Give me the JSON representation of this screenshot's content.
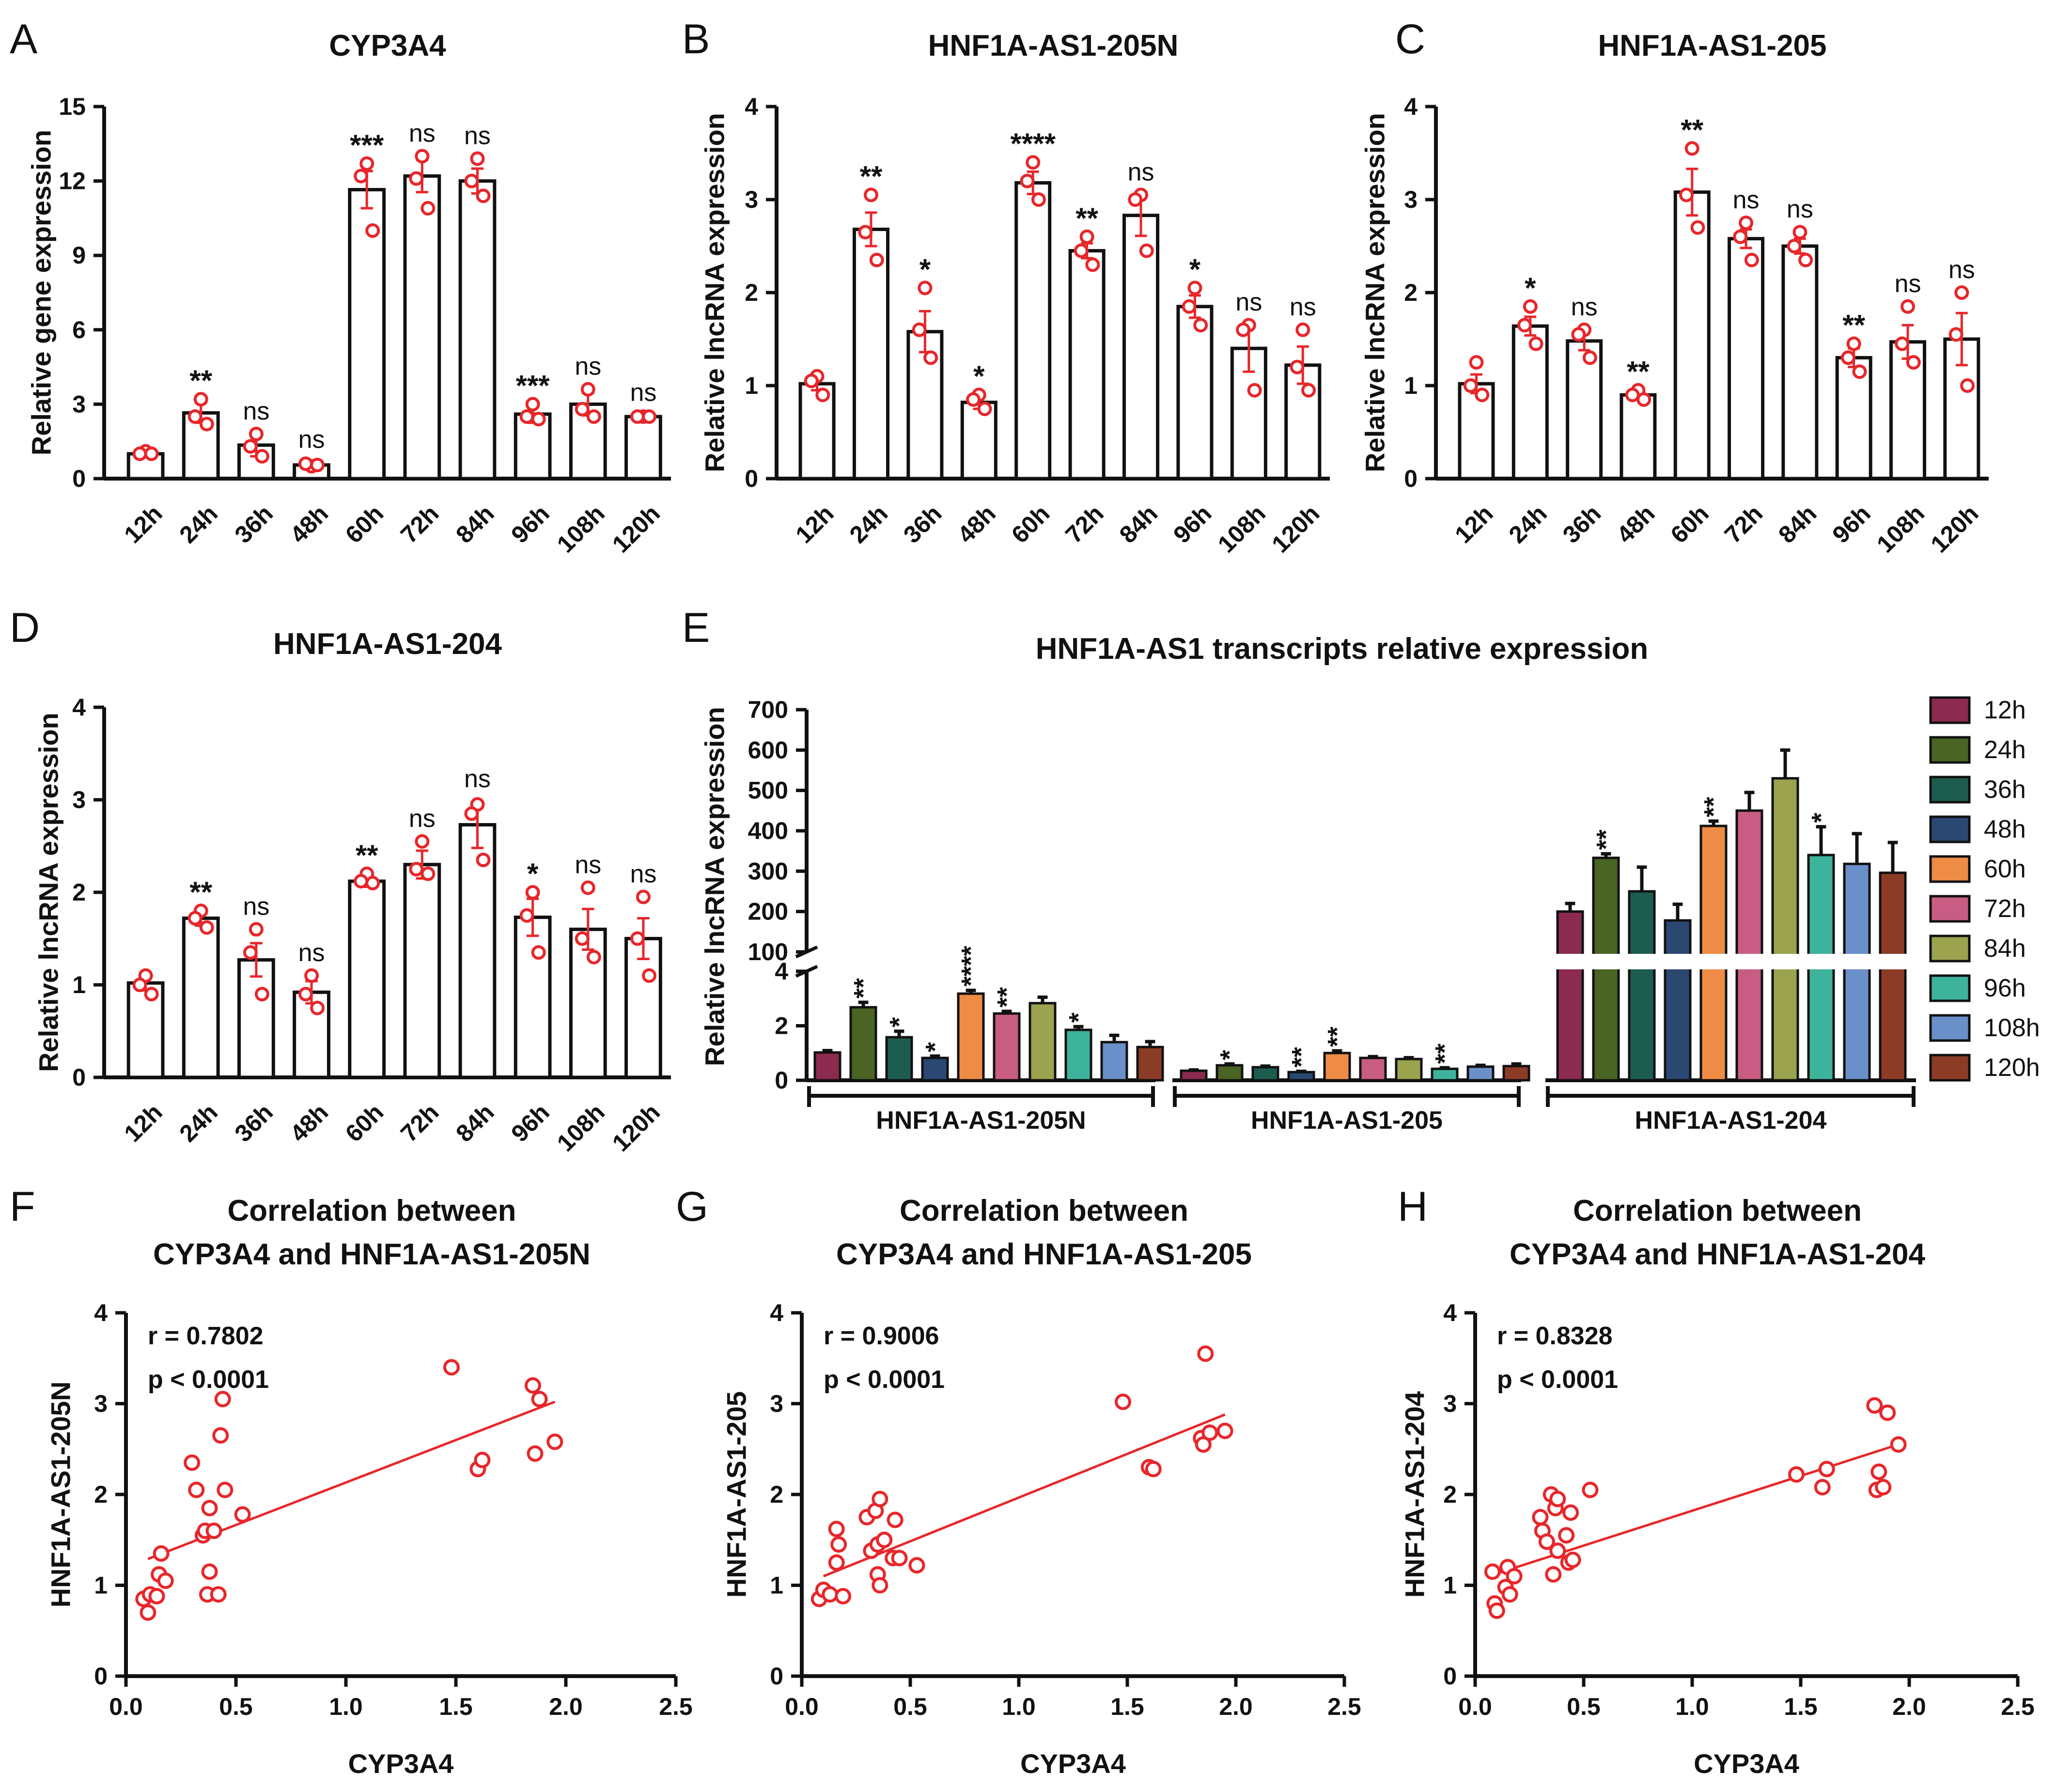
{
  "colors": {
    "accent": "#e8262a",
    "axis": "#111111",
    "series": [
      "#8c2a4f",
      "#4a6424",
      "#1d5d4f",
      "#2a4872",
      "#ee8c45",
      "#c85c82",
      "#9ca34f",
      "#3eb39c",
      "#6a8fc9",
      "#8c3b26"
    ],
    "legend_text": [
      "#8c2a4f",
      "#4a6424",
      "#1d5d4f",
      "#2a4872",
      "#e07a36",
      "#c85c82",
      "#7e8c30",
      "#2d9a84",
      "#4f7ac0",
      "#8c3b26"
    ]
  },
  "chart_data": [
    {
      "panel": "A",
      "type": "bar",
      "title": "CYP3A4",
      "xlabel": "",
      "ylabel": "Relative gene expression",
      "ylim": [
        0,
        15
      ],
      "yticks": [
        "0",
        "3",
        "6",
        "9",
        "12",
        "15"
      ],
      "ytick_values": [
        0,
        3,
        6,
        9,
        12,
        15
      ],
      "categories": [
        "12h",
        "24h",
        "36h",
        "48h",
        "60h",
        "72h",
        "84h",
        "96h",
        "108h",
        "120h"
      ],
      "values": [
        1.0,
        2.65,
        1.35,
        0.55,
        11.65,
        12.2,
        12.0,
        2.6,
        3.0,
        2.5
      ],
      "errors": [
        0.1,
        0.4,
        0.45,
        0.1,
        0.75,
        0.65,
        0.5,
        0.35,
        0.45,
        0.05
      ],
      "points": [
        [
          1.1,
          1.0,
          1.0
        ],
        [
          3.2,
          2.5,
          2.2
        ],
        [
          1.8,
          1.3,
          0.9
        ],
        [
          0.5,
          0.6,
          0.55
        ],
        [
          12.7,
          12.2,
          10.0
        ],
        [
          13.0,
          12.1,
          10.9
        ],
        [
          12.9,
          12.0,
          11.4
        ],
        [
          3.0,
          2.5,
          2.4
        ],
        [
          3.6,
          2.8,
          2.5
        ],
        [
          2.5,
          2.5,
          2.5
        ]
      ],
      "significance": [
        "",
        "**",
        "ns",
        "ns",
        "***",
        "ns",
        "ns",
        "***",
        "ns",
        "ns"
      ]
    },
    {
      "panel": "B",
      "type": "bar",
      "title": "HNF1A-AS1-205N",
      "xlabel": "",
      "ylabel": "Relative lncRNA expression",
      "ylim": [
        0,
        4
      ],
      "yticks": [
        "0",
        "1",
        "2",
        "3",
        "4"
      ],
      "ytick_values": [
        0,
        1,
        2,
        3,
        4
      ],
      "categories": [
        "12h",
        "24h",
        "36h",
        "48h",
        "60h",
        "72h",
        "84h",
        "96h",
        "108h",
        "120h"
      ],
      "values": [
        1.02,
        2.68,
        1.58,
        0.82,
        3.18,
        2.45,
        2.83,
        1.85,
        1.4,
        1.22
      ],
      "errors": [
        0.07,
        0.18,
        0.22,
        0.07,
        0.12,
        0.08,
        0.22,
        0.12,
        0.25,
        0.2
      ],
      "points": [
        [
          1.1,
          1.05,
          0.9
        ],
        [
          3.05,
          2.65,
          2.35
        ],
        [
          2.05,
          1.6,
          1.3
        ],
        [
          0.9,
          0.85,
          0.75
        ],
        [
          3.4,
          3.2,
          3.0
        ],
        [
          2.6,
          2.45,
          2.3
        ],
        [
          3.05,
          3.0,
          2.45
        ],
        [
          2.05,
          1.85,
          1.65
        ],
        [
          1.65,
          1.6,
          0.95
        ],
        [
          1.6,
          1.2,
          0.95
        ]
      ],
      "significance": [
        "",
        "**",
        "*",
        "*",
        "****",
        "**",
        "ns",
        "*",
        "ns",
        "ns"
      ]
    },
    {
      "panel": "C",
      "type": "bar",
      "title": "HNF1A-AS1-205",
      "xlabel": "",
      "ylabel": "Relative lncRNA expression",
      "ylim": [
        0,
        4
      ],
      "yticks": [
        "0",
        "1",
        "2",
        "3",
        "4"
      ],
      "ytick_values": [
        0,
        1,
        2,
        3,
        4
      ],
      "categories": [
        "12h",
        "24h",
        "36h",
        "48h",
        "60h",
        "72h",
        "84h",
        "96h",
        "108h",
        "120h"
      ],
      "values": [
        1.02,
        1.64,
        1.48,
        0.9,
        3.08,
        2.58,
        2.5,
        1.3,
        1.47,
        1.5
      ],
      "errors": [
        0.1,
        0.1,
        0.1,
        0.05,
        0.25,
        0.1,
        0.08,
        0.1,
        0.18,
        0.28
      ],
      "points": [
        [
          1.25,
          1.0,
          0.9
        ],
        [
          1.85,
          1.65,
          1.45
        ],
        [
          1.6,
          1.55,
          1.3
        ],
        [
          0.95,
          0.9,
          0.85
        ],
        [
          3.55,
          3.05,
          2.7
        ],
        [
          2.75,
          2.6,
          2.35
        ],
        [
          2.65,
          2.5,
          2.35
        ],
        [
          1.45,
          1.3,
          1.15
        ],
        [
          1.85,
          1.45,
          1.25
        ],
        [
          2.0,
          1.55,
          1.0
        ]
      ],
      "significance": [
        "",
        "*",
        "ns",
        "**",
        "**",
        "ns",
        "ns",
        "**",
        "ns",
        "ns"
      ]
    },
    {
      "panel": "D",
      "type": "bar",
      "title": "HNF1A-AS1-204",
      "xlabel": "",
      "ylabel": "Relative lncRNA expression",
      "ylim": [
        0,
        4
      ],
      "yticks": [
        "0",
        "1",
        "2",
        "3",
        "4"
      ],
      "ytick_values": [
        0,
        1,
        2,
        3,
        4
      ],
      "categories": [
        "12h",
        "24h",
        "36h",
        "48h",
        "60h",
        "72h",
        "84h",
        "96h",
        "108h",
        "120h"
      ],
      "values": [
        1.02,
        1.72,
        1.27,
        0.92,
        2.12,
        2.3,
        2.73,
        1.73,
        1.6,
        1.5
      ],
      "errors": [
        0.08,
        0.08,
        0.18,
        0.12,
        0.06,
        0.15,
        0.25,
        0.2,
        0.22,
        0.22
      ],
      "points": [
        [
          1.1,
          1.0,
          0.9
        ],
        [
          1.8,
          1.72,
          1.62
        ],
        [
          1.6,
          1.35,
          0.9
        ],
        [
          1.1,
          0.9,
          0.75
        ],
        [
          2.2,
          2.12,
          2.1
        ],
        [
          2.55,
          2.25,
          2.2
        ],
        [
          2.95,
          2.85,
          2.35
        ],
        [
          2.0,
          1.75,
          1.35
        ],
        [
          2.05,
          1.5,
          1.3
        ],
        [
          1.95,
          1.5,
          1.1
        ]
      ],
      "significance": [
        "",
        "**",
        "ns",
        "ns",
        "**",
        "ns",
        "ns",
        "*",
        "ns",
        "ns"
      ]
    },
    {
      "panel": "E",
      "type": "bar",
      "title": "HNF1A-AS1 transcripts relative expression",
      "xlabel": "",
      "ylabel": "Relative lncRNA expression",
      "axis_break": true,
      "lower_range": [
        0,
        4
      ],
      "upper_range": [
        100,
        700
      ],
      "yticks": [
        "0",
        "2",
        "4",
        "100",
        "200",
        "300",
        "400",
        "500",
        "600",
        "700"
      ],
      "ytick_values": [
        0,
        2,
        4,
        100,
        200,
        300,
        400,
        500,
        600,
        700
      ],
      "groups": [
        "HNF1A-AS1-205N",
        "HNF1A-AS1-205",
        "HNF1A-AS1-204"
      ],
      "legend": [
        "12h",
        "24h",
        "36h",
        "48h",
        "60h",
        "72h",
        "84h",
        "96h",
        "108h",
        "120h"
      ],
      "legend_position": "right",
      "series": [
        {
          "name": "HNF1A-AS1-205N",
          "values": [
            1.02,
            2.68,
            1.58,
            0.82,
            3.18,
            2.45,
            2.83,
            1.85,
            1.4,
            1.22
          ],
          "errors": [
            0.07,
            0.18,
            0.22,
            0.07,
            0.12,
            0.08,
            0.22,
            0.12,
            0.25,
            0.2
          ],
          "significance": [
            "",
            "**",
            "*",
            "*",
            "****",
            "**",
            "",
            "*",
            "",
            ""
          ]
        },
        {
          "name": "HNF1A-AS1-205",
          "values": [
            0.35,
            0.55,
            0.48,
            0.3,
            1.0,
            0.82,
            0.78,
            0.42,
            0.5,
            0.52
          ],
          "errors": [
            0.03,
            0.05,
            0.04,
            0.03,
            0.08,
            0.05,
            0.05,
            0.04,
            0.05,
            0.08
          ],
          "significance": [
            "",
            "*",
            "",
            "**",
            "**",
            "",
            "",
            "**",
            "",
            ""
          ]
        },
        {
          "name": "HNF1A-AS1-204",
          "values": [
            200,
            333,
            250,
            178,
            412,
            450,
            530,
            340,
            318,
            296
          ],
          "errors": [
            20,
            10,
            60,
            40,
            12,
            45,
            70,
            70,
            75,
            75
          ],
          "significance": [
            "",
            "**",
            "",
            "",
            "**",
            "",
            "",
            "*",
            "",
            ""
          ]
        }
      ]
    },
    {
      "panel": "F",
      "type": "scatter",
      "title": [
        "Correlation between",
        "CYP3A4 and HNF1A-AS1-205N"
      ],
      "xlabel": "CYP3A4",
      "ylabel": "HNF1A-AS1-205N",
      "xlim": [
        0,
        2.5
      ],
      "ylim": [
        0,
        4
      ],
      "xticks": [
        "0.0",
        "0.5",
        "1.0",
        "1.5",
        "2.0",
        "2.5"
      ],
      "xtick_values": [
        0,
        0.5,
        1,
        1.5,
        2,
        2.5
      ],
      "yticks": [
        "0",
        "1",
        "2",
        "3",
        "4"
      ],
      "ytick_values": [
        0,
        1,
        2,
        3,
        4
      ],
      "annotation": [
        "r = 0.7802",
        "p < 0.0001"
      ],
      "fit": {
        "x": [
          0.1,
          1.95
        ],
        "y": [
          1.29,
          3.02
        ]
      },
      "points": [
        [
          0.08,
          0.85
        ],
        [
          0.1,
          0.7
        ],
        [
          0.11,
          0.9
        ],
        [
          0.14,
          0.88
        ],
        [
          0.15,
          1.12
        ],
        [
          0.16,
          1.35
        ],
        [
          0.18,
          1.05
        ],
        [
          0.3,
          2.35
        ],
        [
          0.32,
          2.05
        ],
        [
          0.35,
          1.55
        ],
        [
          0.36,
          1.6
        ],
        [
          0.38,
          1.85
        ],
        [
          0.38,
          1.15
        ],
        [
          0.4,
          1.6
        ],
        [
          0.37,
          0.9
        ],
        [
          0.42,
          0.9
        ],
        [
          0.43,
          2.65
        ],
        [
          0.44,
          3.05
        ],
        [
          0.45,
          2.05
        ],
        [
          0.53,
          1.78
        ],
        [
          1.48,
          3.4
        ],
        [
          1.6,
          2.28
        ],
        [
          1.62,
          2.38
        ],
        [
          1.85,
          3.2
        ],
        [
          1.86,
          2.45
        ],
        [
          1.88,
          3.05
        ],
        [
          1.95,
          2.58
        ]
      ]
    },
    {
      "panel": "G",
      "type": "scatter",
      "title": [
        "Correlation between",
        "CYP3A4 and HNF1A-AS1-205"
      ],
      "xlabel": "CYP3A4",
      "ylabel": "HNF1A-AS1-205",
      "xlim": [
        0,
        2.5
      ],
      "ylim": [
        0,
        4
      ],
      "xticks": [
        "0.0",
        "0.5",
        "1.0",
        "1.5",
        "2.0",
        "2.5"
      ],
      "xtick_values": [
        0,
        0.5,
        1,
        1.5,
        2,
        2.5
      ],
      "yticks": [
        "0",
        "1",
        "2",
        "3",
        "4"
      ],
      "ytick_values": [
        0,
        1,
        2,
        3,
        4
      ],
      "annotation": [
        "r = 0.9006",
        "p < 0.0001"
      ],
      "fit": {
        "x": [
          0.1,
          1.95
        ],
        "y": [
          1.1,
          2.88
        ]
      },
      "points": [
        [
          0.08,
          0.85
        ],
        [
          0.1,
          0.95
        ],
        [
          0.13,
          0.9
        ],
        [
          0.16,
          1.25
        ],
        [
          0.17,
          1.45
        ],
        [
          0.16,
          1.62
        ],
        [
          0.19,
          0.88
        ],
        [
          0.3,
          1.75
        ],
        [
          0.32,
          1.38
        ],
        [
          0.34,
          1.82
        ],
        [
          0.35,
          1.45
        ],
        [
          0.36,
          1.95
        ],
        [
          0.35,
          1.12
        ],
        [
          0.36,
          1.0
        ],
        [
          0.38,
          1.5
        ],
        [
          0.42,
          1.3
        ],
        [
          0.43,
          1.72
        ],
        [
          0.45,
          1.3
        ],
        [
          0.53,
          1.22
        ],
        [
          1.48,
          3.02
        ],
        [
          1.6,
          2.3
        ],
        [
          1.62,
          2.28
        ],
        [
          1.84,
          2.62
        ],
        [
          1.85,
          2.55
        ],
        [
          1.86,
          3.55
        ],
        [
          1.88,
          2.68
        ],
        [
          1.95,
          2.7
        ]
      ]
    },
    {
      "panel": "H",
      "type": "scatter",
      "title": [
        "Correlation between",
        "CYP3A4 and HNF1A-AS1-204"
      ],
      "xlabel": "CYP3A4",
      "ylabel": "HNF1A-AS1-204",
      "xlim": [
        0,
        2.5
      ],
      "ylim": [
        0,
        4
      ],
      "xticks": [
        "0.0",
        "0.5",
        "1.0",
        "1.5",
        "2.0",
        "2.5"
      ],
      "xtick_values": [
        0,
        0.5,
        1,
        1.5,
        2,
        2.5
      ],
      "yticks": [
        "0",
        "1",
        "2",
        "3",
        "4"
      ],
      "ytick_values": [
        0,
        1,
        2,
        3,
        4
      ],
      "annotation": [
        "r = 0.8328",
        "p < 0.0001"
      ],
      "fit": {
        "x": [
          0.1,
          1.95
        ],
        "y": [
          1.13,
          2.55
        ]
      },
      "points": [
        [
          0.08,
          1.15
        ],
        [
          0.09,
          0.8
        ],
        [
          0.1,
          0.72
        ],
        [
          0.14,
          0.98
        ],
        [
          0.15,
          1.2
        ],
        [
          0.16,
          0.9
        ],
        [
          0.18,
          1.1
        ],
        [
          0.3,
          1.75
        ],
        [
          0.31,
          1.6
        ],
        [
          0.33,
          1.48
        ],
        [
          0.35,
          2.0
        ],
        [
          0.36,
          1.12
        ],
        [
          0.37,
          1.85
        ],
        [
          0.38,
          1.95
        ],
        [
          0.38,
          1.38
        ],
        [
          0.42,
          1.55
        ],
        [
          0.43,
          1.25
        ],
        [
          0.44,
          1.8
        ],
        [
          0.45,
          1.28
        ],
        [
          0.53,
          2.05
        ],
        [
          1.48,
          2.22
        ],
        [
          1.6,
          2.08
        ],
        [
          1.62,
          2.28
        ],
        [
          1.84,
          2.98
        ],
        [
          1.85,
          2.05
        ],
        [
          1.86,
          2.25
        ],
        [
          1.88,
          2.08
        ],
        [
          1.9,
          2.9
        ],
        [
          1.95,
          2.55
        ]
      ]
    }
  ]
}
